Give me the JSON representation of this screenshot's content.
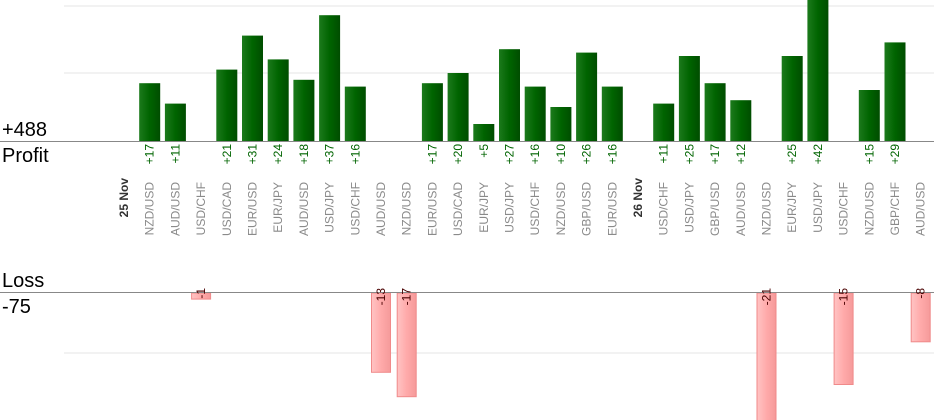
{
  "summary": {
    "profit_total": "+488",
    "profit_label": "Profit",
    "loss_label": "Loss",
    "loss_total": "-75"
  },
  "colors": {
    "profit": "#006400",
    "loss": "#ffaaaa",
    "profit_text": "#006400",
    "loss_text": "#4a0000",
    "grid": "#e6e6e6",
    "axis": "#888888",
    "pair_text": "#8a8a8a",
    "date_text": "#333333"
  },
  "chart_data": {
    "type": "bar",
    "profit_ylim": [
      0,
      50
    ],
    "loss_ylim": [
      -25,
      0
    ],
    "columns": [
      {
        "date": "25 Nov"
      },
      {
        "pair": "NZD/USD",
        "value": 17,
        "label": "+17"
      },
      {
        "pair": "AUD/USD",
        "value": 11,
        "label": "+11"
      },
      {
        "pair": "USD/CHF",
        "value": -1,
        "label": "-1"
      },
      {
        "pair": "USD/CAD",
        "value": 21,
        "label": "+21"
      },
      {
        "pair": "EUR/USD",
        "value": 31,
        "label": "+31"
      },
      {
        "pair": "EUR/JPY",
        "value": 24,
        "label": "+24"
      },
      {
        "pair": "AUD/USD",
        "value": 18,
        "label": "+18"
      },
      {
        "pair": "USD/JPY",
        "value": 37,
        "label": "+37"
      },
      {
        "pair": "USD/CHF",
        "value": 16,
        "label": "+16"
      },
      {
        "pair": "AUD/USD",
        "value": -13,
        "label": "-13"
      },
      {
        "pair": "NZD/USD",
        "value": -17,
        "label": "-17"
      },
      {
        "pair": "EUR/USD",
        "value": 17,
        "label": "+17"
      },
      {
        "pair": "USD/CAD",
        "value": 20,
        "label": "+20"
      },
      {
        "pair": "EUR/JPY",
        "value": 5,
        "label": "+5"
      },
      {
        "pair": "USD/JPY",
        "value": 27,
        "label": "+27"
      },
      {
        "pair": "USD/CHF",
        "value": 16,
        "label": "+16"
      },
      {
        "pair": "NZD/USD",
        "value": 10,
        "label": "+10"
      },
      {
        "pair": "GBP/USD",
        "value": 26,
        "label": "+26"
      },
      {
        "pair": "EUR/USD",
        "value": 16,
        "label": "+16"
      },
      {
        "date": "26 Nov"
      },
      {
        "pair": "USD/CHF",
        "value": 11,
        "label": "+11"
      },
      {
        "pair": "USD/JPY",
        "value": 25,
        "label": "+25"
      },
      {
        "pair": "GBP/USD",
        "value": 17,
        "label": "+17"
      },
      {
        "pair": "AUD/USD",
        "value": 12,
        "label": "+12"
      },
      {
        "pair": "NZD/USD",
        "value": -21,
        "label": "-21"
      },
      {
        "pair": "EUR/JPY",
        "value": 25,
        "label": "+25"
      },
      {
        "pair": "USD/JPY",
        "value": 42,
        "label": "+42"
      },
      {
        "pair": "USD/CHF",
        "value": -15,
        "label": "-15"
      },
      {
        "pair": "NZD/USD",
        "value": 15,
        "label": "+15"
      },
      {
        "pair": "GBP/CHF",
        "value": 29,
        "label": "+29"
      },
      {
        "pair": "AUD/USD",
        "value": -8,
        "label": "-8"
      }
    ]
  }
}
